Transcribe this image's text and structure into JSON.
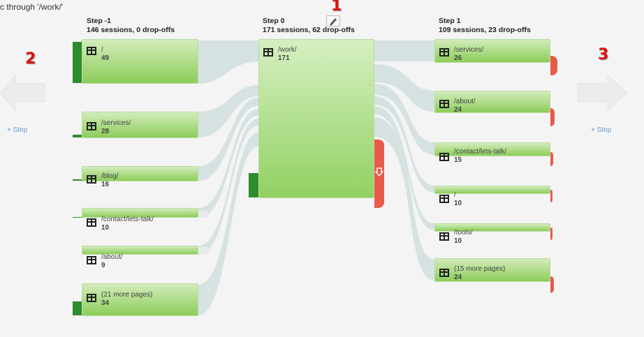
{
  "header": {
    "title": "c through '/work/'"
  },
  "annotations": {
    "a1": "1",
    "a2": "2",
    "a3": "3"
  },
  "add_step": {
    "left": "+ Step",
    "right": "+ Step"
  },
  "columns": [
    {
      "title": "Step -1",
      "summary": "146 sessions, 0 drop-offs"
    },
    {
      "title": "Step 0",
      "summary": "171 sessions, 62 drop-offs"
    },
    {
      "title": "Step 1",
      "summary": "109 sessions, 23 drop-offs"
    }
  ],
  "step_minus1": [
    {
      "page": "/",
      "sessions": "49"
    },
    {
      "page": "/services/",
      "sessions": "28"
    },
    {
      "page": "/blog/",
      "sessions": "16"
    },
    {
      "page": "/contact/lets-talk/",
      "sessions": "10"
    },
    {
      "page": "/about/",
      "sessions": "9"
    },
    {
      "page": "(21 more pages)",
      "sessions": "34"
    }
  ],
  "step0": [
    {
      "page": "/work/",
      "sessions": "171"
    }
  ],
  "step1": [
    {
      "page": "/services/",
      "sessions": "26"
    },
    {
      "page": "/about/",
      "sessions": "24"
    },
    {
      "page": "/contact/lets-talk/",
      "sessions": "15"
    },
    {
      "page": "/",
      "sessions": "10"
    },
    {
      "page": "/tools/",
      "sessions": "10"
    },
    {
      "page": "(15 more pages)",
      "sessions": "24"
    }
  ],
  "colors": {
    "node_top": "#d3ecbb",
    "node_bottom": "#8ccd5a",
    "entry": "#2e8b2e",
    "dropoff": "#e85a4a",
    "flow": "#d5e2e2",
    "annotation": "#dd1111"
  },
  "icons": {
    "page": "table-icon",
    "edit": "pencil-icon",
    "prev": "arrow-left-icon",
    "next": "arrow-right-icon",
    "dropoff": "arrow-down-icon"
  }
}
